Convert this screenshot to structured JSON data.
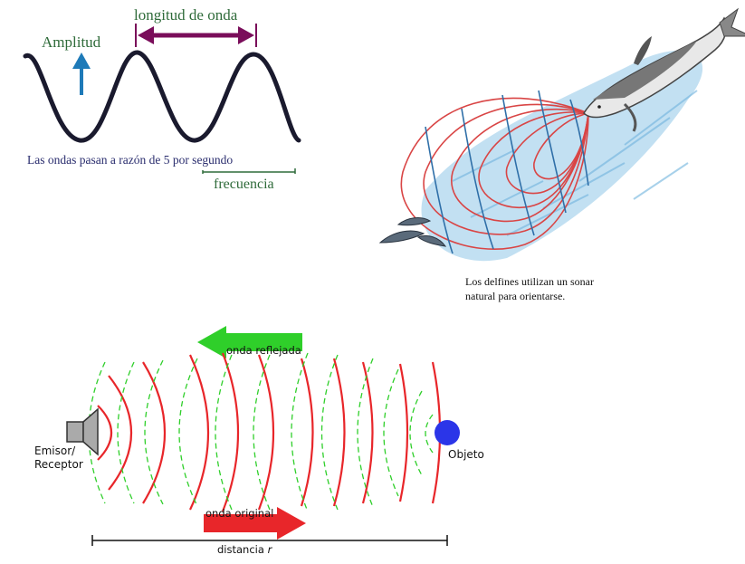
{
  "wave_panel": {
    "amplitude_label": "Amplitud",
    "wavelength_label": "longitud de onda",
    "caption": "Las ondas pasan a razón de 5 por segundo",
    "frequency_label": "frecuencia"
  },
  "dolphin_panel": {
    "caption_line1": "Los delfines utilizan un sonar",
    "caption_line2": "natural para orientarse."
  },
  "sonar_panel": {
    "reflected_wave_label": "onda reflejada",
    "emitter_label_line1": "Emisor/",
    "emitter_label_line2": "Receptor",
    "object_label": "Objeto",
    "original_wave_label": "onda original",
    "distance_label": "distancia",
    "distance_symbol": "r"
  },
  "colors": {
    "wave_line": "#1a1a2e",
    "amplitude_arrow": "#1e7ab8",
    "wavelength_arrow": "#7a0d5a",
    "green_text": "#2f6b3a",
    "sonar_red": "#e8262a",
    "reflected_green": "#2fcf2a",
    "object_blue": "#2b35e8",
    "grid_red": "#d94545",
    "grid_blue": "#2f6fa8",
    "water": "#8fc7e8"
  }
}
